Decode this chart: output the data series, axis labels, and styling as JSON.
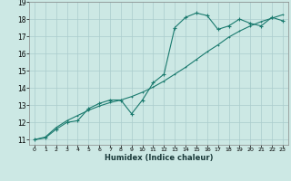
{
  "xlabel": "Humidex (Indice chaleur)",
  "ylabel": "",
  "background_color": "#cce8e4",
  "grid_color": "#aacccc",
  "line_color": "#1a7a6e",
  "xlim": [
    -0.5,
    23.5
  ],
  "ylim": [
    10.7,
    19.0
  ],
  "xticks": [
    0,
    1,
    2,
    3,
    4,
    5,
    6,
    7,
    8,
    9,
    10,
    11,
    12,
    13,
    14,
    15,
    16,
    17,
    18,
    19,
    20,
    21,
    22,
    23
  ],
  "yticks": [
    11,
    12,
    13,
    14,
    15,
    16,
    17,
    18,
    19
  ],
  "curve1_x": [
    0,
    1,
    2,
    3,
    4,
    5,
    6,
    7,
    8,
    9,
    10,
    11,
    12,
    13,
    14,
    15,
    16,
    17,
    18,
    19,
    20,
    21,
    22,
    23
  ],
  "curve1_y": [
    11.0,
    11.1,
    11.6,
    12.0,
    12.1,
    12.8,
    13.1,
    13.3,
    13.3,
    12.5,
    13.3,
    14.3,
    14.8,
    17.5,
    18.1,
    18.35,
    18.2,
    17.4,
    17.6,
    18.0,
    17.75,
    17.6,
    18.1,
    17.9
  ],
  "curve2_x": [
    0,
    1,
    2,
    3,
    4,
    5,
    6,
    7,
    8,
    9,
    10,
    11,
    12,
    13,
    14,
    15,
    16,
    17,
    18,
    19,
    20,
    21,
    22,
    23
  ],
  "curve2_y": [
    11.0,
    11.15,
    11.7,
    12.1,
    12.4,
    12.7,
    12.95,
    13.15,
    13.3,
    13.5,
    13.75,
    14.05,
    14.4,
    14.8,
    15.2,
    15.65,
    16.1,
    16.5,
    16.95,
    17.3,
    17.6,
    17.85,
    18.05,
    18.25
  ]
}
